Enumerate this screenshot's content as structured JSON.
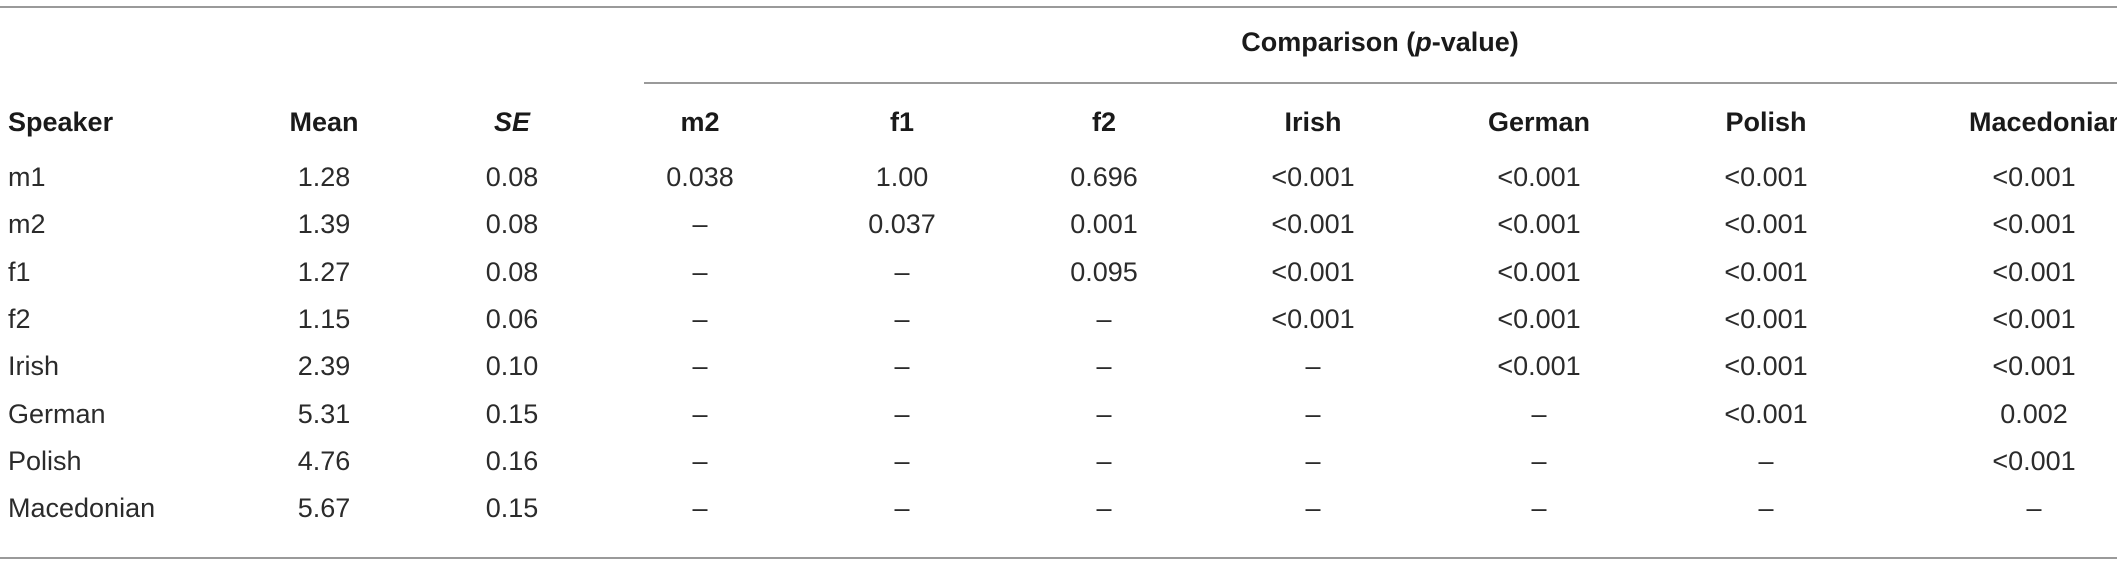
{
  "table": {
    "span_header": {
      "prefix": "Comparison (",
      "italic": "p",
      "suffix": "-value)"
    },
    "columns": [
      "Speaker",
      "Mean",
      "SE",
      "m2",
      "f1",
      "f2",
      "Irish",
      "German",
      "Polish",
      "Macedonian"
    ],
    "rows": [
      [
        "m1",
        "1.28",
        "0.08",
        "0.038",
        "1.00",
        "0.696",
        "<0.001",
        "<0.001",
        "<0.001",
        "<0.001"
      ],
      [
        "m2",
        "1.39",
        "0.08",
        "–",
        "0.037",
        "0.001",
        "<0.001",
        "<0.001",
        "<0.001",
        "<0.001"
      ],
      [
        "f1",
        "1.27",
        "0.08",
        "–",
        "–",
        "0.095",
        "<0.001",
        "<0.001",
        "<0.001",
        "<0.001"
      ],
      [
        "f2",
        "1.15",
        "0.06",
        "–",
        "–",
        "–",
        "<0.001",
        "<0.001",
        "<0.001",
        "<0.001"
      ],
      [
        "Irish",
        "2.39",
        "0.10",
        "–",
        "–",
        "–",
        "–",
        "<0.001",
        "<0.001",
        "<0.001"
      ],
      [
        "German",
        "5.31",
        "0.15",
        "–",
        "–",
        "–",
        "–",
        "–",
        "<0.001",
        "0.002"
      ],
      [
        "Polish",
        "4.76",
        "0.16",
        "–",
        "–",
        "–",
        "–",
        "–",
        "–",
        "<0.001"
      ],
      [
        "Macedonian",
        "5.67",
        "0.15",
        "–",
        "–",
        "–",
        "–",
        "–",
        "–",
        "–"
      ]
    ]
  }
}
